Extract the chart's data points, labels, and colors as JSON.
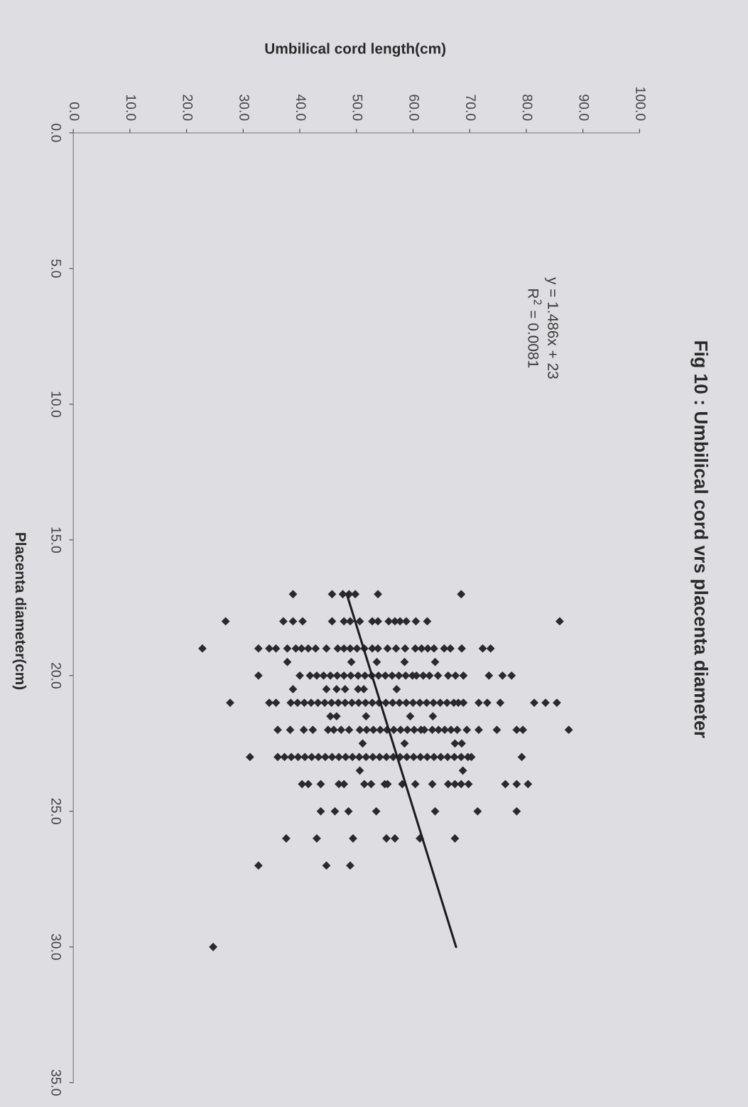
{
  "chart_data": {
    "type": "scatter",
    "title": "Fig 10 : Umbilical cord vrs placenta diameter",
    "xlabel": "Umbilical cord length(cm)",
    "ylabel": "Placenta diameter(cm)",
    "annotations": [
      "y = 1.486x + 23",
      "R$^{2}$ = 0.0081"
    ],
    "ylim": [
      35,
      0
    ],
    "yticks": [
      {
        "value": 0,
        "label": "0.0"
      },
      {
        "value": 5,
        "label": "5.0"
      },
      {
        "value": 10,
        "label": "10.0"
      },
      {
        "value": 15,
        "label": "15.0"
      },
      {
        "value": 20,
        "label": "20.0"
      },
      {
        "value": 25,
        "label": "25.0"
      },
      {
        "value": 30,
        "label": "30.0"
      },
      {
        "value": 35,
        "label": "35.0"
      }
    ],
    "xlim": [
      0,
      100
    ],
    "xticks": [
      {
        "value": 0,
        "label": "0.0"
      },
      {
        "value": 10,
        "label": "10.0"
      },
      {
        "value": 20,
        "label": "20.0"
      },
      {
        "value": 30,
        "label": "30.0"
      },
      {
        "value": 40,
        "label": "40.0"
      },
      {
        "value": 50,
        "label": "50.0"
      },
      {
        "value": 60,
        "label": "60.0"
      },
      {
        "value": 70,
        "label": "70.0"
      },
      {
        "value": 80,
        "label": "80.0"
      },
      {
        "value": 90,
        "label": "90.0"
      },
      {
        "value": 100,
        "label": "100.0"
      }
    ],
    "series": [
      {
        "color": "#2a2a2e",
        "marker": "diamond",
        "values": [
          17,
          17,
          17,
          17,
          17,
          17,
          17,
          18,
          18,
          18,
          18,
          18,
          18,
          18,
          18,
          18,
          18,
          18,
          18,
          18,
          18,
          18,
          18,
          18,
          19,
          19,
          19,
          19,
          19,
          19,
          19,
          19,
          19,
          19,
          19,
          19,
          19,
          19,
          19,
          19,
          19,
          19,
          19,
          19,
          19,
          19,
          19,
          19,
          19,
          19,
          19,
          19,
          19,
          19.5,
          19.5,
          19.5,
          19.5,
          19.5,
          20,
          20,
          20,
          20,
          20,
          20,
          20,
          20,
          20,
          20,
          20,
          20,
          20,
          20,
          20,
          20,
          20,
          20,
          20,
          20,
          20,
          20,
          20,
          20,
          20,
          20,
          20,
          20,
          20.5,
          20.5,
          20.5,
          20.5,
          20.5,
          20.5,
          20.5,
          21,
          21,
          21,
          21,
          21,
          21,
          21,
          21,
          21,
          21,
          21,
          21,
          21,
          21,
          21,
          21,
          21,
          21,
          21,
          21,
          21,
          21,
          21,
          21,
          21,
          21,
          21,
          21,
          21,
          21,
          21,
          21,
          21,
          21,
          21,
          21,
          21.5,
          21.5,
          21.5,
          21.5,
          21.5,
          22,
          22,
          22,
          22,
          22,
          22,
          22,
          22,
          22,
          22,
          22,
          22,
          22,
          22,
          22,
          22,
          22,
          22,
          22,
          22,
          22,
          22,
          22,
          22,
          22,
          22,
          22,
          22,
          22,
          22,
          22.5,
          22.5,
          22.5,
          22.5,
          23,
          23,
          23,
          23,
          23,
          23,
          23,
          23,
          23,
          23,
          23,
          23,
          23,
          23,
          23,
          23,
          23,
          23,
          23,
          23,
          23,
          23,
          23,
          23,
          23,
          23,
          23,
          23,
          23,
          23,
          23,
          23,
          23.5,
          23.5,
          24,
          24,
          24,
          24,
          24,
          24,
          24,
          24,
          24,
          24,
          24,
          24,
          24,
          24,
          24,
          24,
          24,
          24,
          24,
          25,
          25,
          25,
          25,
          25,
          25,
          25,
          26,
          26,
          26,
          26,
          26,
          26,
          26,
          27,
          27,
          27,
          30
        ],
        "x": [
          38.8,
          45.7,
          47.6,
          48.7,
          49.8,
          53.8,
          68.5,
          26.9,
          37.1,
          38.8,
          40.5,
          45.7,
          47.8,
          48.9,
          50.6,
          52.8,
          53.8,
          55.7,
          56.8,
          57.7,
          58.8,
          60.5,
          62.5,
          85.9,
          22.8,
          32.7,
          34.6,
          35.8,
          37.8,
          39.3,
          40.3,
          41.5,
          42.8,
          44.7,
          46.7,
          47.8,
          48.9,
          50.1,
          51.4,
          52.8,
          53.8,
          55.5,
          57.0,
          58.6,
          60.4,
          61.5,
          62.6,
          63.7,
          65.5,
          66.6,
          68.6,
          72.3,
          73.7,
          37.8,
          49.1,
          53.6,
          58.5,
          63.9,
          32.7,
          40.0,
          41.8,
          43.0,
          44.2,
          45.4,
          46.6,
          47.8,
          49.0,
          50.3,
          51.5,
          52.7,
          53.9,
          55.1,
          56.3,
          57.5,
          58.7,
          59.9,
          61.8,
          62.9,
          64.4,
          66.2,
          67.5,
          68.9,
          73.4,
          75.8,
          77.4,
          60.6,
          38.8,
          44.7,
          46.5,
          48.0,
          50.3,
          51.3,
          57.1,
          27.7,
          34.6,
          35.8,
          38.4,
          39.6,
          40.8,
          42.0,
          43.2,
          44.4,
          45.6,
          46.8,
          48.0,
          49.2,
          50.4,
          51.6,
          52.8,
          54.0,
          55.2,
          56.4,
          57.6,
          58.8,
          60.0,
          61.2,
          62.4,
          63.6,
          64.8,
          66.0,
          67.2,
          68.9,
          71.6,
          73.1,
          75.4,
          81.4,
          83.4,
          85.4,
          68.0,
          45.4,
          46.5,
          51.7,
          59.5,
          63.5,
          36.1,
          38.3,
          40.7,
          42.3,
          46.0,
          47.3,
          48.7,
          50.6,
          51.8,
          53.0,
          54.2,
          55.4,
          56.6,
          57.8,
          59.0,
          60.2,
          61.4,
          63.4,
          64.5,
          65.6,
          66.7,
          67.8,
          69.5,
          71.6,
          74.8,
          78.3,
          79.4,
          87.5,
          45.0,
          62.0,
          51.1,
          58.5,
          67.4,
          68.6,
          31.2,
          36.1,
          37.3,
          38.5,
          39.7,
          40.9,
          42.1,
          43.3,
          44.5,
          45.7,
          46.9,
          48.1,
          49.3,
          50.5,
          51.7,
          52.9,
          54.1,
          55.3,
          56.5,
          57.7,
          58.9,
          60.1,
          61.3,
          62.5,
          63.7,
          64.9,
          66.1,
          67.3,
          68.5,
          69.7,
          70.3,
          79.2,
          50.6,
          68.8,
          40.4,
          41.5,
          43.7,
          46.9,
          47.8,
          51.4,
          52.6,
          55.0,
          55.5,
          58.1,
          60.4,
          63.4,
          66.2,
          67.4,
          68.5,
          69.8,
          76.3,
          78.3,
          80.3,
          43.7,
          46.2,
          48.6,
          53.5,
          63.9,
          71.4,
          78.3,
          37.6,
          43.0,
          49.4,
          55.3,
          56.8,
          61.2,
          67.4,
          32.7,
          44.7,
          48.9,
          24.7
        ]
      },
      {
        "type": "line",
        "color": "#1c1c1c",
        "marker": "none",
        "x": [
          48.3,
          67.6
        ],
        "values": [
          17,
          30
        ]
      }
    ]
  }
}
